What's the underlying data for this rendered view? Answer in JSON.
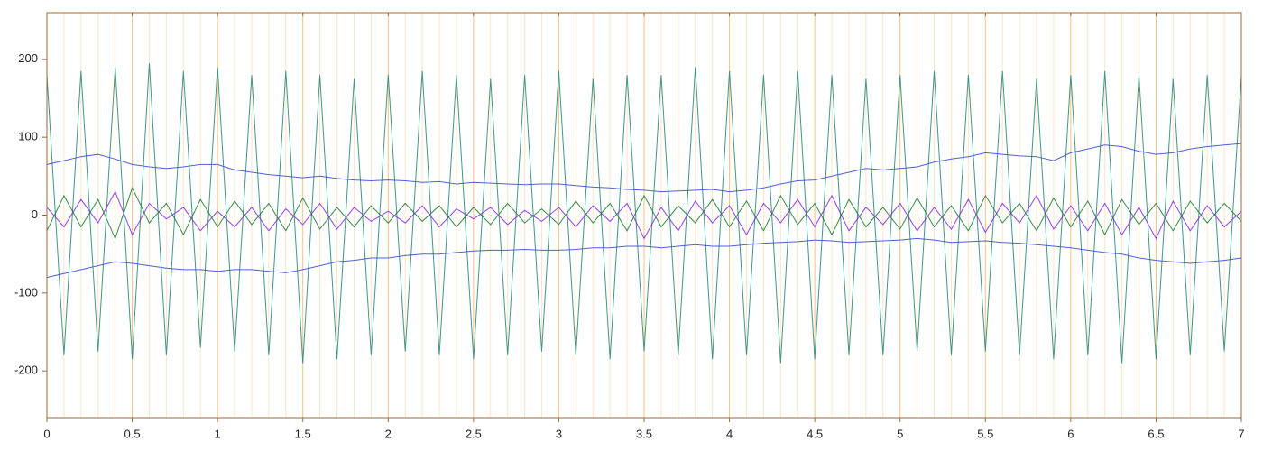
{
  "chart_data": {
    "type": "line",
    "x": [
      0,
      0.1,
      0.2,
      0.3,
      0.4,
      0.5,
      0.6,
      0.7,
      0.8,
      0.9,
      1,
      1.1,
      1.2,
      1.3,
      1.4,
      1.5,
      1.6,
      1.7,
      1.8,
      1.9,
      2,
      2.1,
      2.2,
      2.3,
      2.4,
      2.5,
      2.6,
      2.7,
      2.8,
      2.9,
      3,
      3.1,
      3.2,
      3.3,
      3.4,
      3.5,
      3.6,
      3.7,
      3.8,
      3.9,
      4,
      4.1,
      4.2,
      4.3,
      4.4,
      4.5,
      4.6,
      4.7,
      4.8,
      4.9,
      5,
      5.1,
      5.2,
      5.3,
      5.4,
      5.5,
      5.6,
      5.7,
      5.8,
      5.9,
      6,
      6.1,
      6.2,
      6.3,
      6.4,
      6.5,
      6.6,
      6.7,
      6.8,
      6.9,
      7
    ],
    "series": [
      {
        "color": "#2e8b7a",
        "values": [
          180,
          -180,
          185,
          -175,
          190,
          -185,
          195,
          -180,
          185,
          -170,
          190,
          -175,
          180,
          -180,
          185,
          -190,
          180,
          -185,
          175,
          -180,
          180,
          -175,
          185,
          -180,
          180,
          -185,
          175,
          -180,
          180,
          -175,
          185,
          -180,
          175,
          -185,
          180,
          -175,
          180,
          -180,
          190,
          -185,
          185,
          -180,
          180,
          -190,
          185,
          -185,
          180,
          -180,
          175,
          -180,
          180,
          -175,
          185,
          -180,
          180,
          -175,
          185,
          -180,
          175,
          -185,
          180,
          -180,
          185,
          -190,
          180,
          -185,
          175,
          -180,
          180,
          -175,
          180
        ]
      },
      {
        "color": "#3a50d8",
        "values": [
          65,
          70,
          75,
          78,
          72,
          65,
          62,
          60,
          62,
          65,
          65,
          58,
          55,
          52,
          50,
          48,
          50,
          47,
          45,
          44,
          45,
          44,
          42,
          43,
          40,
          42,
          41,
          40,
          39,
          40,
          40,
          38,
          36,
          35,
          33,
          32,
          30,
          31,
          32,
          33,
          30,
          32,
          35,
          40,
          44,
          45,
          50,
          55,
          60,
          58,
          60,
          62,
          68,
          72,
          75,
          80,
          78,
          76,
          75,
          70,
          80,
          85,
          90,
          88,
          82,
          78,
          80,
          85,
          88,
          90,
          92
        ]
      },
      {
        "color": "#3a50d8",
        "values": [
          -80,
          -75,
          -70,
          -65,
          -60,
          -62,
          -65,
          -68,
          -70,
          -70,
          -72,
          -70,
          -70,
          -72,
          -74,
          -70,
          -65,
          -60,
          -58,
          -55,
          -55,
          -52,
          -50,
          -50,
          -48,
          -46,
          -45,
          -45,
          -44,
          -45,
          -45,
          -44,
          -42,
          -42,
          -40,
          -40,
          -42,
          -40,
          -38,
          -40,
          -40,
          -38,
          -36,
          -35,
          -34,
          -32,
          -33,
          -35,
          -34,
          -33,
          -32,
          -30,
          -32,
          -35,
          -34,
          -33,
          -35,
          -36,
          -38,
          -40,
          -42,
          -45,
          -48,
          -50,
          -55,
          -58,
          -60,
          -62,
          -60,
          -58,
          -55
        ]
      },
      {
        "color": "#8a2be2",
        "values": [
          10,
          -15,
          20,
          -10,
          30,
          -25,
          15,
          -5,
          10,
          -20,
          5,
          -15,
          10,
          -20,
          8,
          -12,
          15,
          -18,
          10,
          -8,
          5,
          -10,
          12,
          -15,
          8,
          -5,
          10,
          -12,
          6,
          -8,
          10,
          -15,
          12,
          -8,
          15,
          -30,
          10,
          -20,
          18,
          -10,
          12,
          -25,
          15,
          -10,
          20,
          -15,
          25,
          -20,
          10,
          -12,
          15,
          -20,
          10,
          -18,
          20,
          -22,
          15,
          -10,
          25,
          -18,
          12,
          -20,
          15,
          -25,
          10,
          -30,
          18,
          -20,
          12,
          -15,
          5
        ]
      },
      {
        "color": "#1e7e34",
        "values": [
          -20,
          25,
          -15,
          20,
          -30,
          35,
          -10,
          15,
          -25,
          20,
          -15,
          18,
          -12,
          15,
          -20,
          22,
          -18,
          10,
          -15,
          12,
          -10,
          15,
          -8,
          12,
          -15,
          10,
          -12,
          15,
          -10,
          8,
          -12,
          18,
          -10,
          15,
          -20,
          25,
          -15,
          12,
          -10,
          20,
          -15,
          18,
          -20,
          25,
          -12,
          15,
          -25,
          20,
          -15,
          10,
          -18,
          22,
          -15,
          12,
          -20,
          25,
          -10,
          15,
          -20,
          22,
          -15,
          18,
          -25,
          20,
          -12,
          15,
          -20,
          18,
          -10,
          15,
          -8
        ]
      }
    ],
    "xlim": [
      0,
      7
    ],
    "xticks": [
      0,
      0.5,
      1,
      1.5,
      2,
      2.5,
      3,
      3.5,
      4,
      4.5,
      5,
      5.5,
      6,
      6.5,
      7
    ],
    "xminor": [
      0.1,
      0.2,
      0.3,
      0.4,
      0.6,
      0.7,
      0.8,
      0.9,
      1.1,
      1.2,
      1.3,
      1.4,
      1.6,
      1.7,
      1.8,
      1.9,
      2.1,
      2.2,
      2.3,
      2.4,
      2.6,
      2.7,
      2.8,
      2.9,
      3.1,
      3.2,
      3.3,
      3.4,
      3.6,
      3.7,
      3.8,
      3.9,
      4.1,
      4.2,
      4.3,
      4.4,
      4.6,
      4.7,
      4.8,
      4.9,
      5.1,
      5.2,
      5.3,
      5.4,
      5.6,
      5.7,
      5.8,
      5.9,
      6.1,
      6.2,
      6.3,
      6.4,
      6.6,
      6.7,
      6.8,
      6.9
    ],
    "ylim": [
      -260,
      260
    ],
    "yticks": [
      -200,
      -100,
      0,
      100,
      200
    ],
    "grid": true
  }
}
